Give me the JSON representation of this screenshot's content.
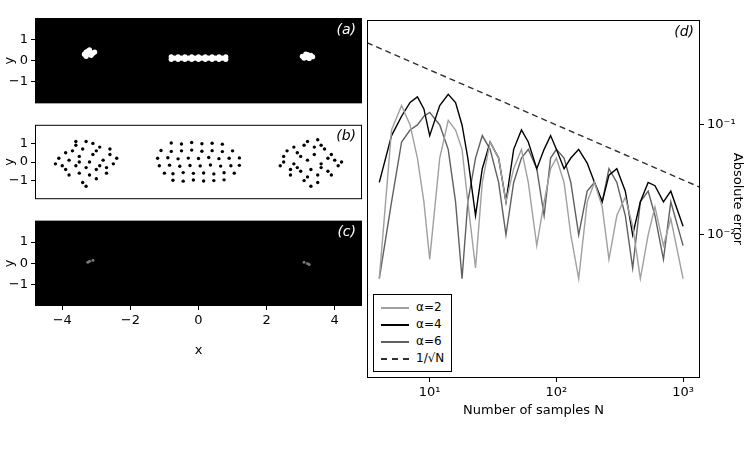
{
  "chart_data": [
    {
      "type": "scatter",
      "title": "(a)",
      "ylabel": "y",
      "color": "#ffffff",
      "marker": "circle",
      "xlim": [
        -4.8,
        4.8
      ],
      "ylim": [
        -2,
        2
      ],
      "xticks": [
        {
          "value": -4,
          "label": "−4"
        },
        {
          "value": -2,
          "label": "−2"
        },
        0,
        2,
        4
      ],
      "yticks": [
        {
          "value": -1,
          "label": "−1"
        },
        0,
        1
      ],
      "tick_labels": "y",
      "grid": false,
      "x": [
        -3.3,
        -3.2,
        -3.1,
        -3.25,
        -3.15,
        -3.35,
        -3.2,
        -3.05,
        -3.3,
        -3.2,
        -0.8,
        -0.6,
        -0.4,
        -0.2,
        0,
        0.2,
        0.4,
        0.6,
        0.8,
        -0.8,
        -0.6,
        -0.4,
        -0.2,
        0,
        0.2,
        0.4,
        0.6,
        0.8,
        -0.7,
        -0.5,
        -0.3,
        -0.1,
        0.1,
        0.3,
        0.5,
        0.7,
        3.1,
        3.2,
        3.3,
        3.15,
        3.25,
        3.05,
        3.2,
        3.35,
        3.1,
        3.2
      ],
      "values": [
        0.4,
        0.3,
        0.35,
        0.45,
        0.25,
        0.3,
        0.5,
        0.4,
        0.2,
        0.38,
        0.06,
        0.06,
        0.06,
        0.06,
        0.06,
        0.06,
        0.06,
        0.06,
        0.06,
        0.18,
        0.18,
        0.18,
        0.18,
        0.18,
        0.18,
        0.18,
        0.18,
        0.18,
        0.12,
        0.12,
        0.12,
        0.12,
        0.12,
        0.12,
        0.12,
        0.12,
        0.2,
        0.15,
        0.25,
        0.3,
        0.1,
        0.2,
        0.28,
        0.18,
        0.12,
        0.22
      ]
    },
    {
      "type": "scatter",
      "title": "(b)",
      "ylabel": "y",
      "color": "#000000",
      "marker": "circle",
      "xlim": [
        -4.8,
        4.8
      ],
      "ylim": [
        -2,
        2
      ],
      "xticks": [
        {
          "value": -4,
          "label": "−4"
        },
        {
          "value": -2,
          "label": "−2"
        },
        0,
        2,
        4
      ],
      "yticks": [
        {
          "value": -1,
          "label": "−1"
        },
        0,
        1
      ],
      "tick_labels": "y",
      "grid": false,
      "x": [
        -3.9,
        -3.6,
        -3.3,
        -2.9,
        -2.6,
        -2.5,
        -2.7,
        -3.0,
        -3.4,
        -3.8,
        -4.0,
        -4.1,
        -3.5,
        -3.1,
        -2.8,
        -3.3,
        -3.6,
        -3.2,
        -3.0,
        -3.7,
        -3.4,
        -2.9,
        -3.5,
        -3.9,
        -2.6,
        -3.1,
        -3.8,
        -3.2,
        -2.7,
        -3.6,
        -3.3,
        -2.4,
        -4.2,
        -3.0,
        -3.5,
        -0.8,
        -0.5,
        -0.2,
        0.1,
        0.4,
        0.7,
        -1.1,
        -0.8,
        -0.5,
        -0.2,
        0.1,
        0.4,
        0.7,
        1.0,
        -1.2,
        -0.9,
        -0.6,
        -0.3,
        0,
        0.3,
        0.6,
        0.9,
        1.2,
        -1.15,
        -0.85,
        -0.55,
        -0.25,
        0.05,
        0.35,
        0.65,
        0.95,
        1.2,
        -1.0,
        -0.75,
        -0.45,
        -0.15,
        0.15,
        0.45,
        0.75,
        1.05,
        -0.75,
        -0.45,
        -0.15,
        0.15,
        0.45,
        0.75,
        3.9,
        3.6,
        3.2,
        2.8,
        2.5,
        2.4,
        2.7,
        3.1,
        3.5,
        3.9,
        4.1,
        4.0,
        3.4,
        3.0,
        2.8,
        3.3,
        3.6,
        3.2,
        3.0,
        3.7,
        3.4,
        2.9,
        3.5,
        3.8,
        2.6,
        3.1,
        3.8,
        3.2,
        2.7,
        3.5,
        3.3,
        2.5,
        4.2,
        2.9,
        3.6
      ],
      "values": [
        0.5,
        0.9,
        1.1,
        0.8,
        0.4,
        -0.1,
        -0.6,
        -0.9,
        -1.1,
        -0.7,
        -0.2,
        0.2,
        0.3,
        0.4,
        0.1,
        -0.3,
        -0.2,
        0.0,
        -0.4,
        0.6,
        0.7,
        -0.2,
        -0.6,
        -0.4,
        0.7,
        1.0,
        0.1,
        -0.7,
        -0.3,
        1.1,
        -1.3,
        0.2,
        -0.1,
        0.6,
        0.0,
        1.02,
        0.97,
        1.05,
        0.98,
        1.01,
        0.96,
        0.62,
        0.57,
        0.6,
        0.64,
        0.58,
        0.61,
        0.56,
        0.6,
        0.2,
        0.23,
        0.17,
        0.21,
        0.19,
        0.24,
        0.18,
        0.2,
        0.22,
        -0.2,
        -0.17,
        -0.23,
        -0.19,
        -0.21,
        -0.16,
        -0.22,
        -0.2,
        -0.18,
        -0.6,
        -0.63,
        -0.57,
        -0.61,
        -0.59,
        -0.64,
        -0.58,
        -0.6,
        -0.98,
        -1.03,
        -0.97,
        -1.02,
        -1.0,
        -0.96,
        0.4,
        0.9,
        1.1,
        0.8,
        0.3,
        -0.2,
        -0.7,
        -1.0,
        -1.1,
        -0.7,
        -0.2,
        0.1,
        0.4,
        0.3,
        -0.1,
        -0.4,
        -0.3,
        0.1,
        -0.5,
        0.7,
        0.8,
        -0.3,
        -0.7,
        -0.5,
        0.6,
        0.9,
        0.2,
        -0.8,
        -0.4,
        1.2,
        -1.3,
        0.0,
        0.0,
        0.5,
        -0.1
      ]
    },
    {
      "type": "scatter",
      "title": "(c)",
      "xlabel": "x",
      "ylabel": "y",
      "color": "#777777",
      "marker": "circle",
      "xlim": [
        -4.8,
        4.8
      ],
      "ylim": [
        -2,
        2
      ],
      "xticks": [
        {
          "value": -4,
          "label": "−4"
        },
        {
          "value": -2,
          "label": "−2"
        },
        0,
        2,
        4
      ],
      "yticks": [
        {
          "value": -1,
          "label": "−1"
        },
        0,
        1
      ],
      "tick_labels": true,
      "grid": false,
      "x": [
        -3.2,
        -3.1,
        -3.25,
        3.2,
        3.1,
        3.25
      ],
      "values": [
        0.1,
        0.15,
        0.05,
        0.0,
        0.05,
        -0.05
      ]
    },
    {
      "type": "line",
      "title": "(d)",
      "xlabel": "Number of samples N",
      "ylabel": "Absolute error",
      "log": true,
      "grid": false,
      "legend": "lower left",
      "xlim": [
        3.2,
        1360
      ],
      "ylim": [
        0.0005,
        0.9
      ],
      "xticks": [
        {
          "value": 10,
          "label": "10¹"
        },
        {
          "value": 100,
          "label": "10²"
        },
        {
          "value": 1000,
          "label": "10³"
        }
      ],
      "yticks": [
        {
          "value": 0.01,
          "label": "10⁻²"
        },
        {
          "value": 0.1,
          "label": "10⁻¹"
        }
      ],
      "x": [
        4,
        5,
        6,
        7,
        8,
        9,
        10,
        12,
        14,
        16,
        18,
        20,
        23,
        26,
        30,
        35,
        40,
        46,
        53,
        60,
        70,
        80,
        90,
        100,
        115,
        130,
        150,
        175,
        200,
        230,
        260,
        300,
        350,
        400,
        460,
        530,
        600,
        700,
        800,
        1000
      ],
      "series": [
        {
          "name": "α=2",
          "color": "#a0a0a0",
          "line_style": "solid",
          "values": [
            0.004,
            0.09,
            0.15,
            0.1,
            0.05,
            0.02,
            0.006,
            0.05,
            0.11,
            0.09,
            0.06,
            0.02,
            0.005,
            0.03,
            0.07,
            0.05,
            0.02,
            0.04,
            0.06,
            0.03,
            0.008,
            0.02,
            0.04,
            0.05,
            0.03,
            0.01,
            0.004,
            0.02,
            0.03,
            0.018,
            0.006,
            0.015,
            0.022,
            0.012,
            0.004,
            0.01,
            0.018,
            0.008,
            0.014,
            0.004
          ]
        },
        {
          "name": "α=4",
          "color": "#000000",
          "line_style": "solid",
          "values": [
            0.03,
            0.08,
            0.12,
            0.16,
            0.18,
            0.14,
            0.08,
            0.15,
            0.19,
            0.16,
            0.1,
            0.05,
            0.015,
            0.04,
            0.07,
            0.05,
            0.02,
            0.06,
            0.09,
            0.07,
            0.04,
            0.06,
            0.08,
            0.06,
            0.04,
            0.05,
            0.06,
            0.045,
            0.03,
            0.02,
            0.035,
            0.04,
            0.025,
            0.01,
            0.02,
            0.03,
            0.028,
            0.02,
            0.025,
            0.012
          ]
        },
        {
          "name": "α=6",
          "color": "#606060",
          "line_style": "solid",
          "values": [
            0.004,
            0.02,
            0.07,
            0.09,
            0.1,
            0.12,
            0.13,
            0.1,
            0.06,
            0.02,
            0.004,
            0.02,
            0.05,
            0.08,
            0.06,
            0.03,
            0.01,
            0.03,
            0.05,
            0.06,
            0.04,
            0.015,
            0.05,
            0.06,
            0.05,
            0.03,
            0.01,
            0.025,
            0.03,
            0.02,
            0.04,
            0.03,
            0.015,
            0.005,
            0.02,
            0.025,
            0.015,
            0.006,
            0.02,
            0.008
          ]
        },
        {
          "name": "1/√N",
          "color": "#303030",
          "line_style": "dashed",
          "x": [
            3.2,
            1360
          ],
          "values": [
            0.559,
            0.0271
          ]
        }
      ]
    }
  ]
}
